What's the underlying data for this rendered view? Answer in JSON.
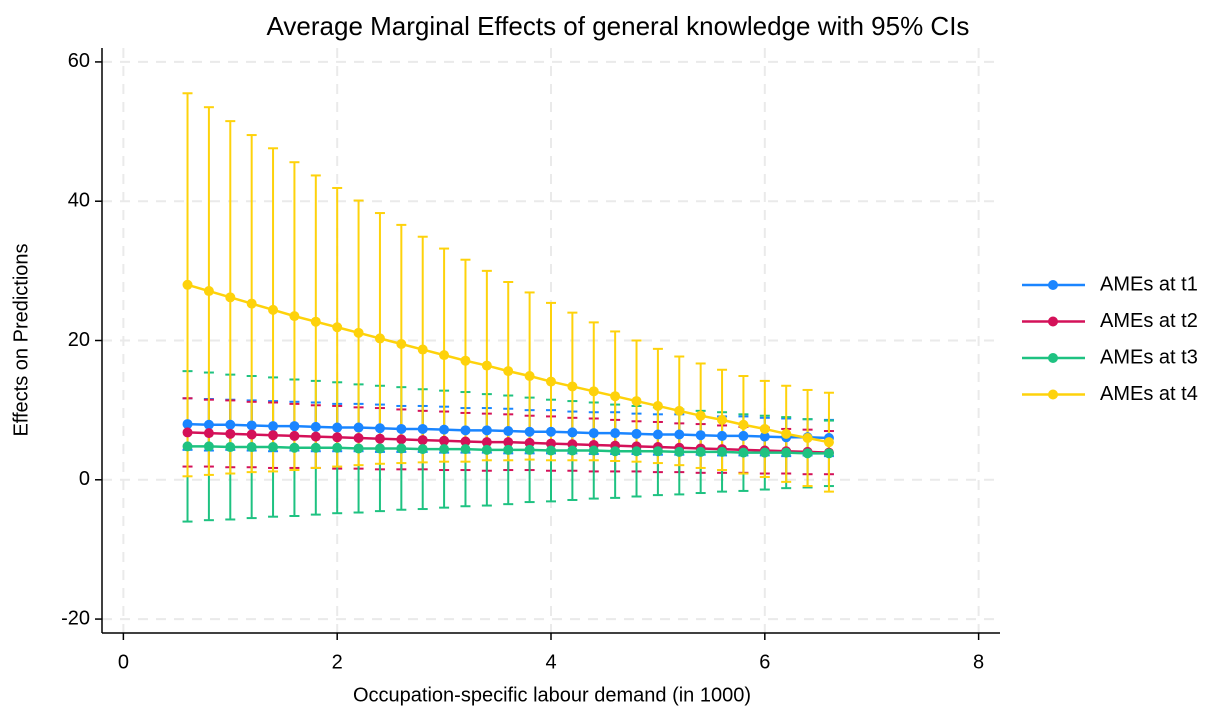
{
  "chart_data": {
    "type": "line_errorbar",
    "title": "Average Marginal Effects of general knowledge with 95% CIs",
    "x_label": "Occupation-specific labour demand (in 1000)",
    "y_label": "Effects on Predictions",
    "xlim": [
      -0.2,
      8.2
    ],
    "ylim": [
      -22,
      62
    ],
    "xticks": [
      0,
      2,
      4,
      6,
      8
    ],
    "yticks": [
      -20,
      0,
      20,
      40,
      60
    ],
    "grid": true,
    "legend": "right",
    "x": [
      0.6,
      0.8,
      1.0,
      1.2,
      1.4,
      1.6,
      1.8,
      2.0,
      2.2,
      2.4,
      2.6,
      2.8,
      3.0,
      3.2,
      3.4,
      3.6,
      3.8,
      4.0,
      4.2,
      4.4,
      4.6,
      4.8,
      5.0,
      5.2,
      5.4,
      5.6,
      5.8,
      6.0,
      6.2,
      6.4,
      6.6
    ],
    "series": [
      {
        "name": "AMEs at t1",
        "color": "#1a85ff",
        "values": [
          8.0,
          7.9,
          7.9,
          7.8,
          7.7,
          7.7,
          7.6,
          7.5,
          7.5,
          7.4,
          7.3,
          7.3,
          7.2,
          7.1,
          7.1,
          7.0,
          6.9,
          6.9,
          6.8,
          6.7,
          6.7,
          6.6,
          6.5,
          6.5,
          6.4,
          6.3,
          6.3,
          6.2,
          6.1,
          6.1,
          6.0
        ],
        "errors": [
          3.7,
          3.7,
          3.6,
          3.6,
          3.6,
          3.5,
          3.5,
          3.4,
          3.4,
          3.4,
          3.3,
          3.3,
          3.3,
          3.2,
          3.2,
          3.2,
          3.1,
          3.1,
          3.0,
          3.0,
          3.0,
          2.9,
          2.9,
          2.9,
          2.8,
          2.8,
          2.8,
          2.7,
          2.7,
          2.6,
          2.6
        ]
      },
      {
        "name": "AMEs at t2",
        "color": "#d41159",
        "values": [
          6.8,
          6.7,
          6.6,
          6.5,
          6.4,
          6.3,
          6.2,
          6.1,
          6.0,
          5.9,
          5.8,
          5.7,
          5.6,
          5.5,
          5.4,
          5.4,
          5.3,
          5.2,
          5.1,
          5.0,
          4.9,
          4.8,
          4.7,
          4.6,
          4.5,
          4.4,
          4.3,
          4.2,
          4.1,
          4.0,
          3.9
        ],
        "errors": [
          4.9,
          4.8,
          4.8,
          4.7,
          4.7,
          4.6,
          4.5,
          4.5,
          4.4,
          4.4,
          4.3,
          4.2,
          4.2,
          4.1,
          4.1,
          4.0,
          3.9,
          3.9,
          3.8,
          3.8,
          3.7,
          3.6,
          3.6,
          3.5,
          3.5,
          3.4,
          3.3,
          3.3,
          3.2,
          3.2,
          3.1
        ]
      },
      {
        "name": "AMEs at t3",
        "color": "#1ec281",
        "values": [
          4.8,
          4.8,
          4.7,
          4.7,
          4.7,
          4.6,
          4.6,
          4.6,
          4.5,
          4.5,
          4.5,
          4.4,
          4.4,
          4.4,
          4.3,
          4.3,
          4.3,
          4.2,
          4.2,
          4.2,
          4.1,
          4.1,
          4.1,
          4.0,
          4.0,
          4.0,
          3.9,
          3.9,
          3.9,
          3.8,
          3.8
        ],
        "errors": [
          10.8,
          10.6,
          10.4,
          10.2,
          10.0,
          9.8,
          9.6,
          9.4,
          9.2,
          9.0,
          8.8,
          8.6,
          8.4,
          8.2,
          8.0,
          7.8,
          7.5,
          7.3,
          7.1,
          6.9,
          6.7,
          6.5,
          6.3,
          6.1,
          5.9,
          5.7,
          5.5,
          5.3,
          5.1,
          4.9,
          4.7
        ]
      },
      {
        "name": "AMEs at t4",
        "color": "#fed20b",
        "values": [
          28.0,
          27.1,
          26.2,
          25.3,
          24.4,
          23.5,
          22.7,
          21.9,
          21.1,
          20.3,
          19.5,
          18.7,
          17.9,
          17.1,
          16.4,
          15.6,
          14.9,
          14.1,
          13.4,
          12.7,
          12.0,
          11.3,
          10.6,
          9.9,
          9.2,
          8.6,
          7.9,
          7.3,
          6.6,
          6.0,
          5.4
        ],
        "errors": [
          27.5,
          26.4,
          25.3,
          24.2,
          23.2,
          22.1,
          21.0,
          20.0,
          19.0,
          18.0,
          17.1,
          16.2,
          15.3,
          14.5,
          13.6,
          12.8,
          12.0,
          11.3,
          10.6,
          9.9,
          9.3,
          8.7,
          8.2,
          7.8,
          7.5,
          7.2,
          7.0,
          6.9,
          6.9,
          6.9,
          7.1
        ]
      }
    ]
  }
}
